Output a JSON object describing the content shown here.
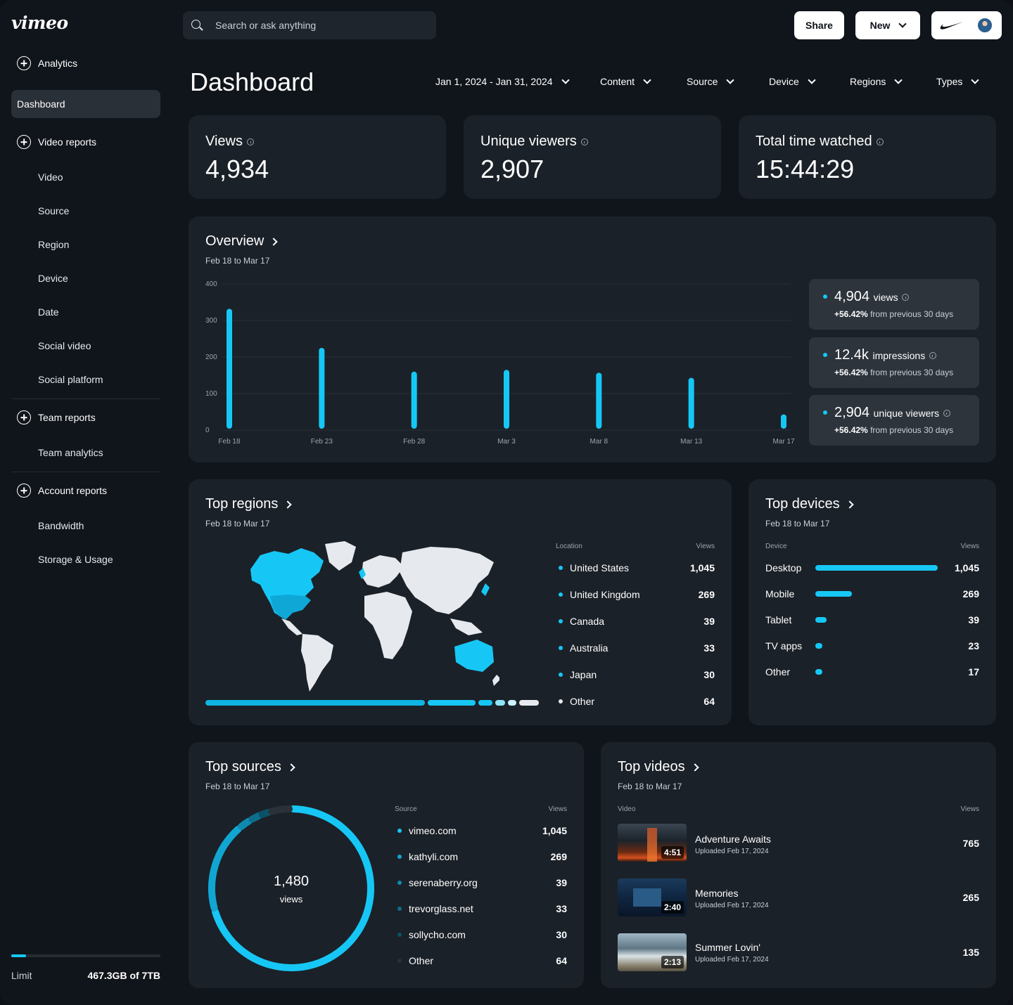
{
  "brand": {
    "logo": "vimeo",
    "accent": "#16c7f5"
  },
  "search": {
    "placeholder": "Search or ask anything"
  },
  "header": {
    "share_label": "Share",
    "new_label": "New",
    "title": "Dashboard"
  },
  "filters": [
    "Jan 1, 2024 - Jan 31, 2024",
    "Content",
    "Source",
    "Device",
    "Regions",
    "Types"
  ],
  "sidebar": {
    "analytics": "Analytics",
    "dashboard": "Dashboard",
    "video_reports": "Video reports",
    "video_items": [
      "Video",
      "Source",
      "Region",
      "Device",
      "Date",
      "Social video",
      "Social platform"
    ],
    "team_reports": "Team reports",
    "team_items": [
      "Team analytics"
    ],
    "account_reports": "Account reports",
    "account_items": [
      "Bandwidth",
      "Storage & Usage"
    ],
    "limit_label": "Limit",
    "limit_value": "467.3GB of 7TB",
    "limit_fraction": 0.1
  },
  "kpis": [
    {
      "label": "Views",
      "value": "4,934"
    },
    {
      "label": "Unique viewers",
      "value": "2,907"
    },
    {
      "label": "Total time watched",
      "value": "15:44:29"
    }
  ],
  "overview": {
    "title": "Overview",
    "subtitle": "Feb 18 to Mar 17",
    "stats": [
      {
        "value": "4,904",
        "unit": "views",
        "change": "+56.42%",
        "suffix": "from previous 30 days"
      },
      {
        "value": "12.4k",
        "unit": "impressions",
        "change": "+56.42%",
        "suffix": "from previous 30 days"
      },
      {
        "value": "2,904",
        "unit": "unique viewers",
        "change": "+56.42%",
        "suffix": "from previous 30 days"
      }
    ]
  },
  "chart_data": {
    "type": "bar",
    "title": "Overview",
    "categories": [
      "Feb 18",
      "Feb 23",
      "Feb 28",
      "Mar 3",
      "Mar 8",
      "Mar 13",
      "Mar 17"
    ],
    "values": [
      332,
      225,
      160,
      165,
      157,
      143,
      43
    ],
    "yticks": [
      "400",
      "300",
      "200",
      "100",
      "0"
    ],
    "ylim": [
      0,
      400
    ],
    "xlabel": "",
    "ylabel": ""
  },
  "regions": {
    "title": "Top regions",
    "subtitle": "Feb 18 to Mar 17",
    "col_location": "Location",
    "col_views": "Views",
    "rows": [
      {
        "name": "United States",
        "views": "1,045",
        "color": "#16c7f5"
      },
      {
        "name": "United Kingdom",
        "views": "269",
        "color": "#16c7f5"
      },
      {
        "name": "Canada",
        "views": "39",
        "color": "#16c7f5"
      },
      {
        "name": "Australia",
        "views": "33",
        "color": "#16c7f5"
      },
      {
        "name": "Japan",
        "views": "30",
        "color": "#16c7f5"
      },
      {
        "name": "Other",
        "views": "64",
        "color": "#e6eaee"
      }
    ]
  },
  "devices": {
    "title": "Top devices",
    "subtitle": "Feb 18 to Mar 17",
    "col_device": "Device",
    "col_views": "Views",
    "rows": [
      {
        "name": "Desktop",
        "views": "1,045",
        "fraction": 1.0
      },
      {
        "name": "Mobile",
        "views": "269",
        "fraction": 0.3
      },
      {
        "name": "Tablet",
        "views": "39",
        "fraction": 0.09
      },
      {
        "name": "TV apps",
        "views": "23",
        "fraction": 0.06
      },
      {
        "name": "Other",
        "views": "17",
        "fraction": 0.06
      }
    ]
  },
  "sources": {
    "title": "Top sources",
    "subtitle": "Feb 18 to Mar 17",
    "donut_value": "1,480",
    "donut_label": "views",
    "col_source": "Source",
    "col_views": "Views",
    "rows": [
      {
        "name": "vimeo.com",
        "views": "1,045",
        "color": "#16c7f5"
      },
      {
        "name": "kathyli.com",
        "views": "269",
        "color": "#11a6d2"
      },
      {
        "name": "serenaberry.org",
        "views": "39",
        "color": "#0e8ab0"
      },
      {
        "name": "trevorglass.net",
        "views": "33",
        "color": "#0c6e8c"
      },
      {
        "name": "sollycho.com",
        "views": "30",
        "color": "#0a5268"
      },
      {
        "name": "Other",
        "views": "64",
        "color": "#2a3138"
      }
    ]
  },
  "videos": {
    "title": "Top videos",
    "subtitle": "Feb 18 to Mar 17",
    "col_video": "Video",
    "col_views": "Views",
    "rows": [
      {
        "title": "Adventure Awaits",
        "uploaded": "Uploaded Feb 17, 2024",
        "duration": "4:51",
        "views": "765"
      },
      {
        "title": "Memories",
        "uploaded": "Uploaded Feb 17, 2024",
        "duration": "2:40",
        "views": "265"
      },
      {
        "title": "Summer Lovin'",
        "uploaded": "Uploaded Feb 17, 2024",
        "duration": "2:13",
        "views": "135"
      }
    ]
  }
}
